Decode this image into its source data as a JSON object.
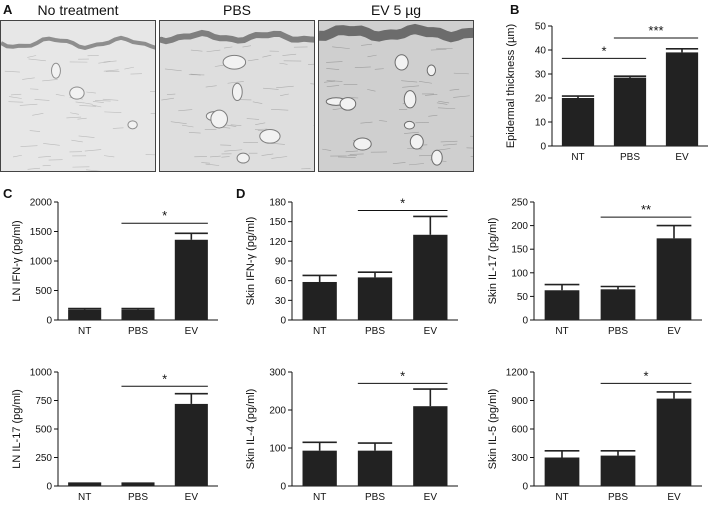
{
  "panels": {
    "a": {
      "letter": "A",
      "images": [
        {
          "title": "No treatment",
          "tone": "#e7e7e7",
          "dark": "#8e8e8e"
        },
        {
          "title": "PBS",
          "tone": "#dedede",
          "dark": "#7f7f7f"
        },
        {
          "title": "EV 5 µg",
          "tone": "#cfcfcf",
          "dark": "#6c6c6c"
        }
      ]
    },
    "b": {
      "letter": "B"
    },
    "c": {
      "letter": "C"
    },
    "d": {
      "letter": "D"
    }
  },
  "chart_data": [
    {
      "id": "B",
      "type": "bar",
      "categories": [
        "NT",
        "PBS",
        "EV"
      ],
      "values": [
        20,
        28.5,
        39
      ],
      "errors": [
        0.8,
        0.6,
        1.5
      ],
      "ylabel": "Epidermal thickness (µm)",
      "ylim": [
        0,
        50
      ],
      "yticks": [
        0,
        10,
        20,
        30,
        40,
        50
      ],
      "sig": [
        {
          "from": 0,
          "to": 1,
          "label": "*",
          "y": 36.5
        },
        {
          "from": 1,
          "to": 2,
          "label": "***",
          "y": 45
        }
      ]
    },
    {
      "id": "C1",
      "type": "bar",
      "categories": [
        "NT",
        "PBS",
        "EV"
      ],
      "values": [
        180,
        180,
        1360
      ],
      "errors": [
        15,
        15,
        110
      ],
      "ylabel": "LN IFN-γ (pg/ml)",
      "ylim": [
        0,
        2000
      ],
      "yticks": [
        0,
        500,
        1000,
        1500,
        2000
      ],
      "sig": [
        {
          "from": 1,
          "to": 2,
          "label": "*",
          "y": 1640
        }
      ]
    },
    {
      "id": "D1",
      "type": "bar",
      "categories": [
        "NT",
        "PBS",
        "EV"
      ],
      "values": [
        58,
        65,
        130
      ],
      "errors": [
        10,
        8,
        28
      ],
      "ylabel": "Skin IFN-γ (pg/ml)",
      "ylim": [
        0,
        180
      ],
      "yticks": [
        0,
        30,
        60,
        90,
        120,
        150,
        180
      ],
      "sig": [
        {
          "from": 1,
          "to": 2,
          "label": "*",
          "y": 167
        }
      ]
    },
    {
      "id": "D2",
      "type": "bar",
      "categories": [
        "NT",
        "PBS",
        "EV"
      ],
      "values": [
        63,
        65,
        173
      ],
      "errors": [
        12,
        6,
        27
      ],
      "ylabel": "Skin IL-17 (pg/ml)",
      "ylim": [
        0,
        250
      ],
      "yticks": [
        0,
        50,
        100,
        150,
        200,
        250
      ],
      "sig": [
        {
          "from": 1,
          "to": 2,
          "label": "**",
          "y": 218
        }
      ]
    },
    {
      "id": "C2",
      "type": "bar",
      "categories": [
        "NT",
        "PBS",
        "EV"
      ],
      "values": [
        20,
        20,
        720
      ],
      "errors": [
        5,
        5,
        90
      ],
      "ylabel": "LN IL-17 (pg/ml)",
      "ylim": [
        0,
        1000
      ],
      "yticks": [
        0,
        250,
        500,
        750,
        1000
      ],
      "sig": [
        {
          "from": 1,
          "to": 2,
          "label": "*",
          "y": 875
        }
      ]
    },
    {
      "id": "D3",
      "type": "bar",
      "categories": [
        "NT",
        "PBS",
        "EV"
      ],
      "values": [
        93,
        93,
        210
      ],
      "errors": [
        22,
        20,
        45
      ],
      "ylabel": "Skin IL-4 (pg/ml)",
      "ylim": [
        0,
        300
      ],
      "yticks": [
        0,
        100,
        200,
        300
      ],
      "sig": [
        {
          "from": 1,
          "to": 2,
          "label": "*",
          "y": 270
        }
      ]
    },
    {
      "id": "D4",
      "type": "bar",
      "categories": [
        "NT",
        "PBS",
        "EV"
      ],
      "values": [
        300,
        320,
        920
      ],
      "errors": [
        70,
        50,
        70
      ],
      "ylabel": "Skin IL-5 (pg/ml)",
      "ylim": [
        0,
        1200
      ],
      "yticks": [
        0,
        300,
        600,
        900,
        1200
      ],
      "sig": [
        {
          "from": 1,
          "to": 2,
          "label": "*",
          "y": 1080
        }
      ]
    }
  ]
}
